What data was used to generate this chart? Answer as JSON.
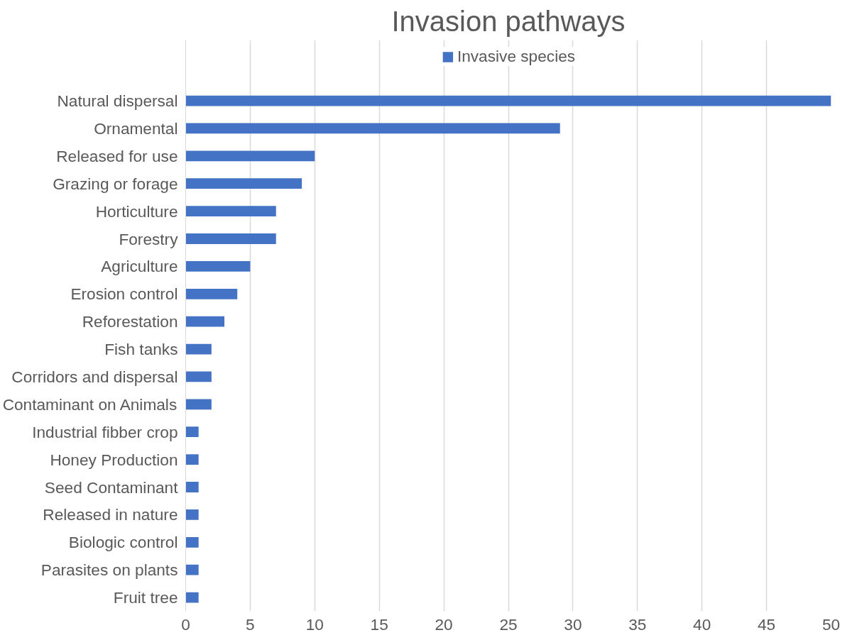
{
  "chart_data": {
    "type": "bar",
    "orientation": "horizontal",
    "title": "Invasion pathways",
    "categories": [
      "Natural dispersal",
      "Ornamental",
      "Released for use",
      "Grazing or forage",
      "Horticulture",
      "Forestry",
      "Agriculture",
      "Erosion control",
      "Reforestation",
      "Fish tanks",
      "Corridors and dispersal",
      "Contaminant on Animals",
      "Industrial fibber crop",
      "Honey Production",
      "Seed Contaminant",
      "Released in nature",
      "Biologic control",
      "Parasites on plants",
      "Fruit tree"
    ],
    "series": [
      {
        "name": "Invasive species",
        "color": "#4472c4",
        "values": [
          50,
          29,
          10,
          9,
          7,
          7,
          5,
          4,
          3,
          2,
          2,
          2,
          1,
          1,
          1,
          1,
          1,
          1,
          1
        ]
      }
    ],
    "xlim": [
      0,
      50
    ],
    "xticks": [
      0,
      5,
      10,
      15,
      20,
      25,
      30,
      35,
      40,
      45,
      50
    ],
    "grid": "x",
    "legend": "top"
  }
}
